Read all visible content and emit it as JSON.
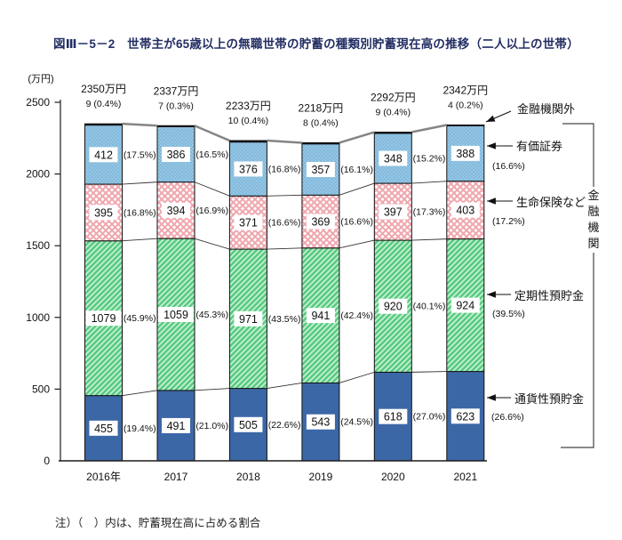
{
  "title": "図Ⅲ－5－2　世帯主が65歳以上の無職世帯の貯蓄の種類別貯蓄現在高の推移（二人以上の世帯）",
  "note": "注）（　）内は、貯蓄現在高に占める割合",
  "chart_data": {
    "type": "bar",
    "stacked": true,
    "unit_label": "(万円)",
    "ylim": [
      0,
      2500
    ],
    "yticks": [
      0,
      500,
      1000,
      1500,
      2000,
      2500
    ],
    "categories": [
      "2016年",
      "2017",
      "2018",
      "2019",
      "2020",
      "2021"
    ],
    "totals": [
      {
        "amount": "2350万円",
        "sub": "9 (0.4%)"
      },
      {
        "amount": "2337万円",
        "sub": "7 (0.3%)"
      },
      {
        "amount": "2233万円",
        "sub": "10 (0.4%)"
      },
      {
        "amount": "2218万円",
        "sub": "8 (0.4%)"
      },
      {
        "amount": "2292万円",
        "sub": "9 (0.4%)"
      },
      {
        "amount": "2342万円",
        "sub": "4 (0.2%)"
      }
    ],
    "series": [
      {
        "key": "tsuka",
        "name": "通貨性預貯金",
        "values": [
          455,
          491,
          505,
          543,
          618,
          623
        ],
        "pcts": [
          "(19.4%)",
          "(21.0%)",
          "(22.6%)",
          "(24.5%)",
          "(27.0%)",
          "(26.6%)"
        ]
      },
      {
        "key": "teiki",
        "name": "定期性預貯金",
        "values": [
          1079,
          1059,
          971,
          941,
          920,
          924
        ],
        "pcts": [
          "(45.9%)",
          "(45.3%)",
          "(43.5%)",
          "(42.4%)",
          "(40.1%)",
          "(39.5%)"
        ]
      },
      {
        "key": "seiho",
        "name": "生命保険など",
        "values": [
          395,
          394,
          371,
          369,
          397,
          403
        ],
        "pcts": [
          "(16.8%)",
          "(16.9%)",
          "(16.6%)",
          "(16.6%)",
          "(17.3%)",
          "(17.2%)"
        ]
      },
      {
        "key": "yuka",
        "name": "有価証券",
        "values": [
          412,
          386,
          376,
          357,
          348,
          388
        ],
        "pcts": [
          "(17.5%)",
          "(16.5%)",
          "(16.8%)",
          "(16.1%)",
          "(15.2%)",
          "(16.6%)"
        ]
      },
      {
        "key": "gaibu",
        "name": "金融機関外",
        "values": [
          9,
          7,
          10,
          8,
          9,
          4
        ],
        "pcts": []
      }
    ],
    "legend": {
      "gaibu": "金融機関外",
      "yuka": "有価証券",
      "seiho": "生命保険など",
      "teiki": "定期性預貯金",
      "tsuka": "通貨性預貯金",
      "bracket": "金融機関"
    },
    "colors": {
      "tsuka": "#3c67a6",
      "teiki_bg": "#ccf2d8",
      "teiki_stripe": "#59cb82",
      "seiho_bg": "#ffffff",
      "seiho_line": "#f0a6ae",
      "yuka_bg": "#95c6e4",
      "yuka_dot": "#6ba8cf",
      "gaibu": "#14161e",
      "axis": "#1c1c1c",
      "top_line": "#858585",
      "connector": "#333333",
      "text": "#111111",
      "title": "#232f63"
    }
  }
}
